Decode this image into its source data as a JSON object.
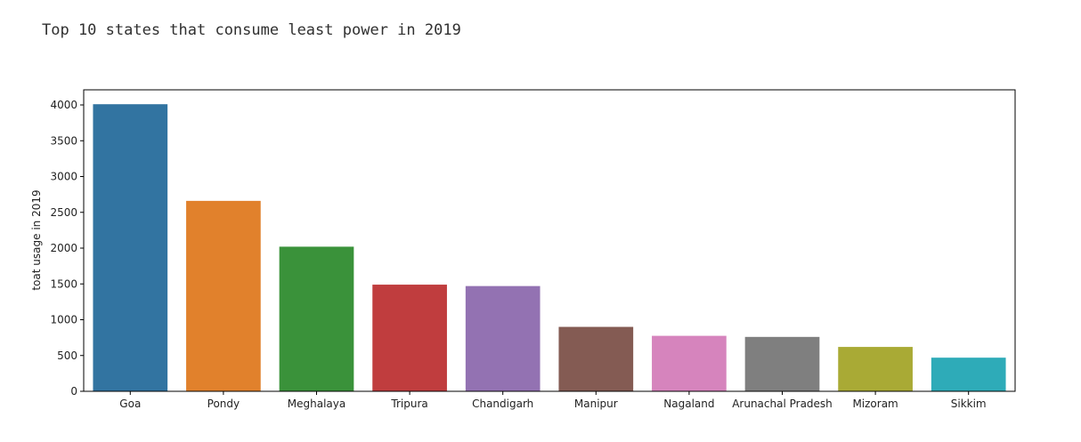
{
  "output": {
    "text": "Top 10 states that consume least power in 2019"
  },
  "chart_data": {
    "type": "bar",
    "title": "",
    "xlabel": "",
    "ylabel": "toat usage in 2019",
    "categories": [
      "Goa",
      "Pondy",
      "Meghalaya",
      "Tripura",
      "Chandigarh",
      "Manipur",
      "Nagaland",
      "Arunachal Pradesh",
      "Mizoram",
      "Sikkim"
    ],
    "values": [
      4010,
      2660,
      2020,
      1490,
      1470,
      900,
      775,
      760,
      620,
      470
    ],
    "colors": [
      "#3274a1",
      "#e1812c",
      "#3a923a",
      "#c03d3e",
      "#9372b2",
      "#845b53",
      "#d684bd",
      "#7f7f7f",
      "#a9aa35",
      "#2eabb8"
    ],
    "ylim": [
      0,
      4200
    ],
    "yticks": [
      0,
      500,
      1000,
      1500,
      2000,
      2500,
      3000,
      3500,
      4000
    ],
    "grid": false,
    "legend": "none"
  }
}
